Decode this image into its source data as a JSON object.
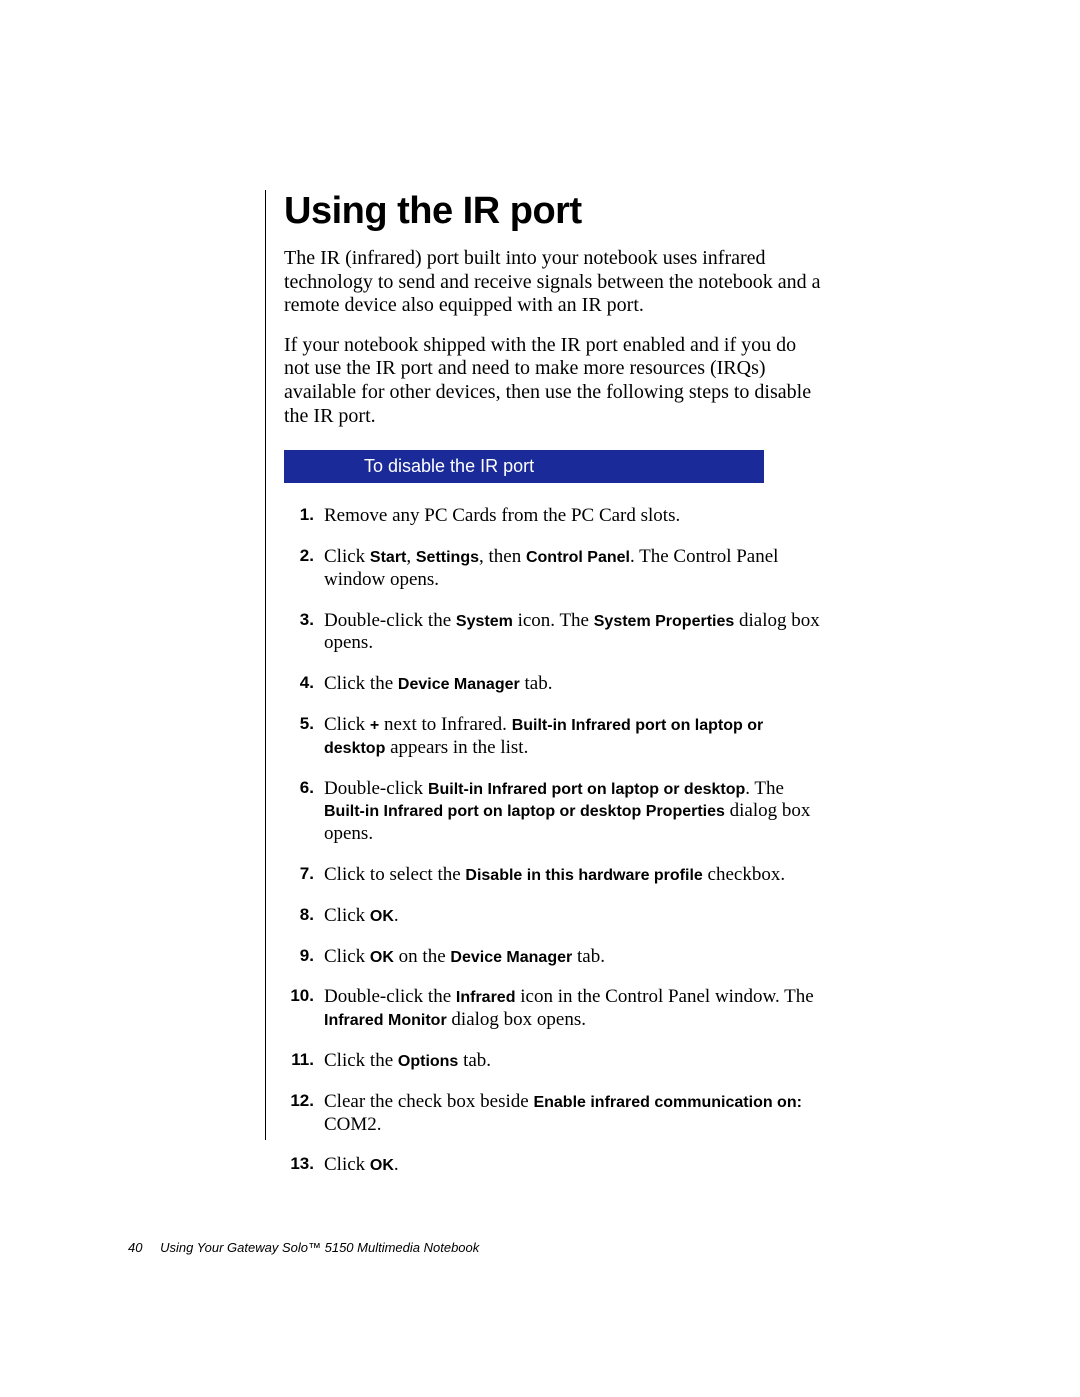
{
  "title": "Using the IR port",
  "intro": [
    "The IR (infrared) port built into your notebook uses infrared technology to send and receive signals between the notebook and a remote device also equipped with an IR port.",
    "If your notebook shipped with the IR port enabled and if you do not use the IR port and need to make more resources (IRQs) available for other devices, then use the following steps to disable the IR port."
  ],
  "procedure_title": "To disable the IR port",
  "steps": [
    [
      {
        "t": "Remove any PC Cards from the PC Card slots."
      }
    ],
    [
      {
        "t": "Click "
      },
      {
        "ui": "Start"
      },
      {
        "t": ", "
      },
      {
        "ui": "Settings"
      },
      {
        "t": ", then "
      },
      {
        "ui": "Control Panel"
      },
      {
        "t": ". The Control Panel window opens."
      }
    ],
    [
      {
        "t": "Double-click the "
      },
      {
        "ui": "System"
      },
      {
        "t": " icon. The "
      },
      {
        "ui": "System Properties"
      },
      {
        "t": " dialog box opens."
      }
    ],
    [
      {
        "t": "Click the "
      },
      {
        "ui": "Device Manager"
      },
      {
        "t": " tab."
      }
    ],
    [
      {
        "t": "Click "
      },
      {
        "ui": "+"
      },
      {
        "t": " next to Infrared. "
      },
      {
        "ui": "Built-in Infrared port on laptop or desktop"
      },
      {
        "t": " appears in the list."
      }
    ],
    [
      {
        "t": "Double-click "
      },
      {
        "ui": "Built-in Infrared port on laptop or desktop"
      },
      {
        "t": ". The "
      },
      {
        "ui": "Built-in Infrared port on laptop or desktop Properties"
      },
      {
        "t": " dialog box opens."
      }
    ],
    [
      {
        "t": "Click to select the "
      },
      {
        "ui": "Disable in this hardware profile"
      },
      {
        "t": " checkbox."
      }
    ],
    [
      {
        "t": "Click "
      },
      {
        "ui": "OK"
      },
      {
        "t": "."
      }
    ],
    [
      {
        "t": "Click "
      },
      {
        "ui": "OK"
      },
      {
        "t": " on the "
      },
      {
        "ui": "Device Manager"
      },
      {
        "t": " tab."
      }
    ],
    [
      {
        "t": "Double-click the "
      },
      {
        "ui": "Infrared"
      },
      {
        "t": " icon in the Control Panel window. The "
      },
      {
        "ui": "Infrared Monitor"
      },
      {
        "t": " dialog box opens."
      }
    ],
    [
      {
        "t": "Click the "
      },
      {
        "ui": "Options"
      },
      {
        "t": " tab."
      }
    ],
    [
      {
        "t": "Clear the check box beside "
      },
      {
        "ui": "Enable infrared communication on:"
      },
      {
        "t": " COM2."
      }
    ],
    [
      {
        "t": "Click "
      },
      {
        "ui": "OK"
      },
      {
        "t": "."
      }
    ]
  ],
  "footer": {
    "page_number": "40",
    "book_title": "Using Your Gateway Solo™ 5150 Multimedia Notebook"
  },
  "colors": {
    "bar_bg": "#1a2a99",
    "bar_fg": "#ffffff",
    "page_bg": "#ffffff",
    "text": "#000000"
  }
}
